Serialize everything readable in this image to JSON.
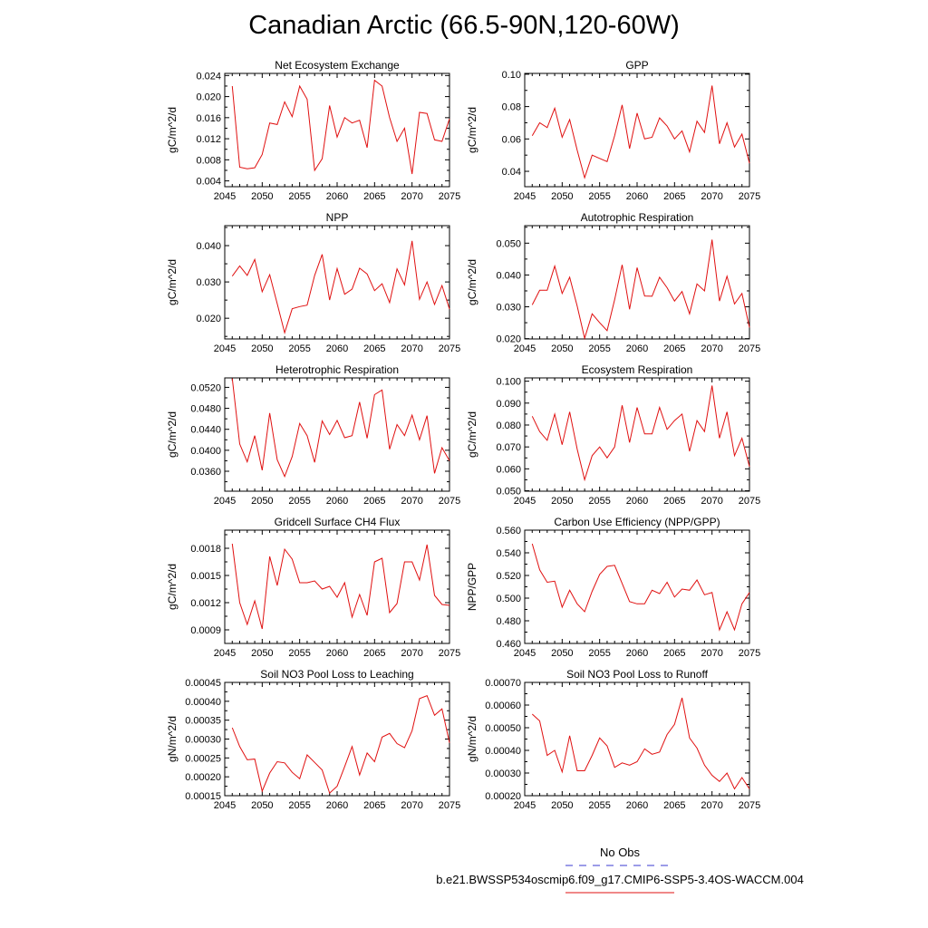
{
  "title": "Canadian Arctic (66.5-90N,120-60W)",
  "legend": {
    "obs_label": "No Obs",
    "obs_color": "#3a3ad0",
    "case_label": "b.e21.BWSSP534oscmip6.f09_g17.CMIP6-SSP5-3.4OS-WACCM.004",
    "case_color": "#e01010"
  },
  "chart_data": [
    {
      "type": "line",
      "title": "Net Ecosystem Exchange",
      "ylabel": "gC/m^2/d",
      "xlim": [
        2045,
        2075
      ],
      "xticks": [
        "2045",
        "2050",
        "2055",
        "2060",
        "2065",
        "2070",
        "2075"
      ],
      "ylim": [
        0.0029,
        0.0244
      ],
      "yticks": [
        "0.004",
        "0.008",
        "0.012",
        "0.016",
        "0.020",
        "0.024"
      ],
      "series": [
        {
          "name": "b.e21.BWSSP534oscmip6.f09_g17.CMIP6-SSP5-3.4OS-WACCM.004",
          "color": "#e01010",
          "x": [
            2046,
            2047,
            2048,
            2049,
            2050,
            2051,
            2052,
            2053,
            2054,
            2055,
            2056,
            2057,
            2058,
            2059,
            2060,
            2061,
            2062,
            2063,
            2064,
            2065,
            2066,
            2067,
            2068,
            2069,
            2070,
            2071,
            2072,
            2073,
            2074,
            2075
          ],
          "y": [
            0.022,
            0.0066,
            0.0063,
            0.0065,
            0.009,
            0.015,
            0.0147,
            0.019,
            0.0162,
            0.022,
            0.0195,
            0.006,
            0.0082,
            0.0183,
            0.0123,
            0.016,
            0.015,
            0.0155,
            0.0103,
            0.0231,
            0.022,
            0.016,
            0.0115,
            0.014,
            0.0053,
            0.017,
            0.0168,
            0.0118,
            0.0115,
            0.0158
          ]
        }
      ]
    },
    {
      "type": "line",
      "title": "GPP",
      "ylabel": "gC/m^2/d",
      "xlim": [
        2045,
        2075
      ],
      "xticks": [
        "2045",
        "2050",
        "2055",
        "2060",
        "2065",
        "2070",
        "2075"
      ],
      "ylim": [
        0.0305,
        0.1005
      ],
      "yticks": [
        "0.04",
        "0.06",
        "0.08",
        "0.10"
      ],
      "series": [
        {
          "name": "b.e21.BWSSP534oscmip6.f09_g17.CMIP6-SSP5-3.4OS-WACCM.004",
          "color": "#e01010",
          "x": [
            2046,
            2047,
            2048,
            2049,
            2050,
            2051,
            2052,
            2053,
            2054,
            2055,
            2056,
            2057,
            2058,
            2059,
            2060,
            2061,
            2062,
            2063,
            2064,
            2065,
            2066,
            2067,
            2068,
            2069,
            2070,
            2071,
            2072,
            2073,
            2074,
            2075
          ],
          "y": [
            0.062,
            0.07,
            0.067,
            0.079,
            0.061,
            0.072,
            0.053,
            0.036,
            0.05,
            0.048,
            0.046,
            0.062,
            0.081,
            0.054,
            0.076,
            0.06,
            0.061,
            0.073,
            0.068,
            0.06,
            0.065,
            0.052,
            0.071,
            0.064,
            0.093,
            0.057,
            0.07,
            0.055,
            0.063,
            0.045
          ]
        }
      ]
    },
    {
      "type": "line",
      "title": "NPP",
      "ylabel": "gC/m^2/d",
      "xlim": [
        2045,
        2075
      ],
      "xticks": [
        "2045",
        "2050",
        "2055",
        "2060",
        "2065",
        "2070",
        "2075"
      ],
      "ylim": [
        0.0143,
        0.0455
      ],
      "yticks": [
        "0.020",
        "0.030",
        "0.040"
      ],
      "series": [
        {
          "name": "b.e21.BWSSP534oscmip6.f09_g17.CMIP6-SSP5-3.4OS-WACCM.004",
          "color": "#e01010",
          "x": [
            2046,
            2047,
            2048,
            2049,
            2050,
            2051,
            2052,
            2053,
            2054,
            2055,
            2056,
            2057,
            2058,
            2059,
            2060,
            2061,
            2062,
            2063,
            2064,
            2065,
            2066,
            2067,
            2068,
            2069,
            2070,
            2071,
            2072,
            2073,
            2074,
            2075
          ],
          "y": [
            0.0316,
            0.0344,
            0.0318,
            0.0362,
            0.0273,
            0.032,
            0.024,
            0.016,
            0.0226,
            0.0232,
            0.0236,
            0.0318,
            0.0376,
            0.025,
            0.0337,
            0.0266,
            0.028,
            0.0338,
            0.0322,
            0.0276,
            0.0295,
            0.0243,
            0.0336,
            0.0292,
            0.0413,
            0.0252,
            0.03,
            0.0238,
            0.029,
            0.0225
          ]
        }
      ]
    },
    {
      "type": "line",
      "title": "Autotrophic Respiration",
      "ylabel": "gC/m^2/d",
      "xlim": [
        2045,
        2075
      ],
      "xticks": [
        "2045",
        "2050",
        "2055",
        "2060",
        "2065",
        "2070",
        "2075"
      ],
      "ylim": [
        0.0199,
        0.0555
      ],
      "yticks": [
        "0.020",
        "0.030",
        "0.040",
        "0.050"
      ],
      "series": [
        {
          "name": "b.e21.BWSSP534oscmip6.f09_g17.CMIP6-SSP5-3.4OS-WACCM.004",
          "color": "#e01010",
          "x": [
            2046,
            2047,
            2048,
            2049,
            2050,
            2051,
            2052,
            2053,
            2054,
            2055,
            2056,
            2057,
            2058,
            2059,
            2060,
            2061,
            2062,
            2063,
            2064,
            2065,
            2066,
            2067,
            2068,
            2069,
            2070,
            2071,
            2072,
            2073,
            2074,
            2075
          ],
          "y": [
            0.0306,
            0.0352,
            0.0352,
            0.0428,
            0.0342,
            0.0393,
            0.0302,
            0.0201,
            0.0278,
            0.025,
            0.0225,
            0.0322,
            0.0432,
            0.0292,
            0.0423,
            0.0334,
            0.0333,
            0.0393,
            0.036,
            0.0318,
            0.0348,
            0.0278,
            0.0372,
            0.035,
            0.0511,
            0.0318,
            0.0396,
            0.0309,
            0.0342,
            0.0235
          ]
        }
      ]
    },
    {
      "type": "line",
      "title": "Heterotrophic Respiration",
      "ylabel": "gC/m^2/d",
      "xlim": [
        2045,
        2075
      ],
      "xticks": [
        "2045",
        "2050",
        "2055",
        "2060",
        "2065",
        "2070",
        "2075"
      ],
      "ylim": [
        0.0322,
        0.0538
      ],
      "yticks": [
        "0.0360",
        "0.0400",
        "0.0440",
        "0.0480",
        "0.0520"
      ],
      "series": [
        {
          "name": "b.e21.BWSSP534oscmip6.f09_g17.CMIP6-SSP5-3.4OS-WACCM.004",
          "color": "#e01010",
          "x": [
            2046,
            2047,
            2048,
            2049,
            2050,
            2051,
            2052,
            2053,
            2054,
            2055,
            2056,
            2057,
            2058,
            2059,
            2060,
            2061,
            2062,
            2063,
            2064,
            2065,
            2066,
            2067,
            2068,
            2069,
            2070,
            2071,
            2072,
            2073,
            2074,
            2075
          ],
          "y": [
            0.0537,
            0.0412,
            0.0378,
            0.0428,
            0.0362,
            0.0471,
            0.0382,
            0.035,
            0.0388,
            0.0451,
            0.0428,
            0.0377,
            0.0456,
            0.043,
            0.0457,
            0.0424,
            0.0428,
            0.0492,
            0.0423,
            0.0506,
            0.0515,
            0.0402,
            0.0449,
            0.0428,
            0.0467,
            0.042,
            0.0466,
            0.0356,
            0.0405,
            0.038
          ]
        }
      ]
    },
    {
      "type": "line",
      "title": "Ecosystem Respiration",
      "ylabel": "gC/m^2/d",
      "xlim": [
        2045,
        2075
      ],
      "xticks": [
        "2045",
        "2050",
        "2055",
        "2060",
        "2065",
        "2070",
        "2075"
      ],
      "ylim": [
        0.0498,
        0.1015
      ],
      "yticks": [
        "0.050",
        "0.060",
        "0.070",
        "0.080",
        "0.090",
        "0.100"
      ],
      "series": [
        {
          "name": "b.e21.BWSSP534oscmip6.f09_g17.CMIP6-SSP5-3.4OS-WACCM.004",
          "color": "#e01010",
          "x": [
            2046,
            2047,
            2048,
            2049,
            2050,
            2051,
            2052,
            2053,
            2054,
            2055,
            2056,
            2057,
            2058,
            2059,
            2060,
            2061,
            2062,
            2063,
            2064,
            2065,
            2066,
            2067,
            2068,
            2069,
            2070,
            2071,
            2072,
            2073,
            2074,
            2075
          ],
          "y": [
            0.084,
            0.077,
            0.073,
            0.085,
            0.071,
            0.086,
            0.069,
            0.055,
            0.066,
            0.07,
            0.065,
            0.07,
            0.089,
            0.072,
            0.088,
            0.076,
            0.076,
            0.088,
            0.078,
            0.082,
            0.085,
            0.068,
            0.082,
            0.077,
            0.098,
            0.074,
            0.086,
            0.066,
            0.074,
            0.061
          ]
        }
      ]
    },
    {
      "type": "line",
      "title": "Gridcell Surface CH4 Flux",
      "ylabel": "gC/m^2/d",
      "xlim": [
        2045,
        2075
      ],
      "xticks": [
        "2045",
        "2050",
        "2055",
        "2060",
        "2065",
        "2070",
        "2075"
      ],
      "ylim": [
        0.00075,
        0.002
      ],
      "yticks": [
        "0.0009",
        "0.0012",
        "0.0015",
        "0.0018"
      ],
      "series": [
        {
          "name": "b.e21.BWSSP534oscmip6.f09_g17.CMIP6-SSP5-3.4OS-WACCM.004",
          "color": "#e01010",
          "x": [
            2046,
            2047,
            2048,
            2049,
            2050,
            2051,
            2052,
            2053,
            2054,
            2055,
            2056,
            2057,
            2058,
            2059,
            2060,
            2061,
            2062,
            2063,
            2064,
            2065,
            2066,
            2067,
            2068,
            2069,
            2070,
            2071,
            2072,
            2073,
            2074,
            2075
          ],
          "y": [
            0.00185,
            0.0012,
            0.00096,
            0.00122,
            0.00091,
            0.00171,
            0.00139,
            0.00179,
            0.00168,
            0.00142,
            0.00142,
            0.00144,
            0.00135,
            0.00138,
            0.00126,
            0.00142,
            0.00104,
            0.00129,
            0.00106,
            0.00165,
            0.00169,
            0.00109,
            0.00119,
            0.00165,
            0.00165,
            0.00145,
            0.00184,
            0.00128,
            0.00118,
            0.00117
          ]
        }
      ]
    },
    {
      "type": "line",
      "title": "Carbon Use Efficiency (NPP/GPP)",
      "ylabel": "NPP/GPP",
      "xlim": [
        2045,
        2075
      ],
      "xticks": [
        "2045",
        "2050",
        "2055",
        "2060",
        "2065",
        "2070",
        "2075"
      ],
      "ylim": [
        0.46,
        0.56
      ],
      "yticks": [
        "0.460",
        "0.480",
        "0.500",
        "0.520",
        "0.540",
        "0.560"
      ],
      "series": [
        {
          "name": "b.e21.BWSSP534oscmip6.f09_g17.CMIP6-SSP5-3.4OS-WACCM.004",
          "color": "#e01010",
          "x": [
            2046,
            2047,
            2048,
            2049,
            2050,
            2051,
            2052,
            2053,
            2054,
            2055,
            2056,
            2057,
            2058,
            2059,
            2060,
            2061,
            2062,
            2063,
            2064,
            2065,
            2066,
            2067,
            2068,
            2069,
            2070,
            2071,
            2072,
            2073,
            2074,
            2075
          ],
          "y": [
            0.548,
            0.525,
            0.514,
            0.515,
            0.492,
            0.507,
            0.495,
            0.488,
            0.506,
            0.521,
            0.528,
            0.529,
            0.513,
            0.497,
            0.495,
            0.495,
            0.507,
            0.504,
            0.514,
            0.501,
            0.508,
            0.507,
            0.516,
            0.503,
            0.505,
            0.472,
            0.488,
            0.472,
            0.495,
            0.505
          ]
        }
      ]
    },
    {
      "type": "line",
      "title": "Soil NO3 Pool Loss to Leaching",
      "ylabel": "gN/m^2/d",
      "xlim": [
        2045,
        2075
      ],
      "xticks": [
        "2045",
        "2050",
        "2055",
        "2060",
        "2065",
        "2070",
        "2075"
      ],
      "ylim": [
        0.00015,
        0.00045
      ],
      "yticks": [
        "0.00015",
        "0.00020",
        "0.00025",
        "0.00030",
        "0.00035",
        "0.00040",
        "0.00045"
      ],
      "series": [
        {
          "name": "b.e21.BWSSP534oscmip6.f09_g17.CMIP6-SSP5-3.4OS-WACCM.004",
          "color": "#e01010",
          "x": [
            2046,
            2047,
            2048,
            2049,
            2050,
            2051,
            2052,
            2053,
            2054,
            2055,
            2056,
            2057,
            2058,
            2059,
            2060,
            2061,
            2062,
            2063,
            2064,
            2065,
            2066,
            2067,
            2068,
            2069,
            2070,
            2071,
            2072,
            2073,
            2074,
            2075
          ],
          "y": [
            0.00033,
            0.00028,
            0.000245,
            0.000247,
            0.000162,
            0.00021,
            0.00024,
            0.000237,
            0.000212,
            0.000195,
            0.000258,
            0.000238,
            0.000218,
            0.000157,
            0.000175,
            0.000227,
            0.00028,
            0.000205,
            0.000263,
            0.00024,
            0.000305,
            0.000315,
            0.000288,
            0.000277,
            0.000322,
            0.000407,
            0.000415,
            0.000363,
            0.00038,
            0.00029
          ]
        }
      ]
    },
    {
      "type": "line",
      "title": "Soil NO3 Pool Loss to Runoff",
      "ylabel": "gN/m^2/d",
      "xlim": [
        2045,
        2075
      ],
      "xticks": [
        "2045",
        "2050",
        "2055",
        "2060",
        "2065",
        "2070",
        "2075"
      ],
      "ylim": [
        0.0002,
        0.0007
      ],
      "yticks": [
        "0.00020",
        "0.00030",
        "0.00040",
        "0.00050",
        "0.00060",
        "0.00070"
      ],
      "series": [
        {
          "name": "b.e21.BWSSP534oscmip6.f09_g17.CMIP6-SSP5-3.4OS-WACCM.004",
          "color": "#e01010",
          "x": [
            2046,
            2047,
            2048,
            2049,
            2050,
            2051,
            2052,
            2053,
            2054,
            2055,
            2056,
            2057,
            2058,
            2059,
            2060,
            2061,
            2062,
            2063,
            2064,
            2065,
            2066,
            2067,
            2068,
            2069,
            2070,
            2071,
            2072,
            2073,
            2074,
            2075
          ],
          "y": [
            0.00056,
            0.00053,
            0.000378,
            0.0004,
            0.000305,
            0.000465,
            0.00031,
            0.00031,
            0.000378,
            0.000455,
            0.00042,
            0.000325,
            0.000345,
            0.000335,
            0.00035,
            0.000407,
            0.000383,
            0.000393,
            0.00047,
            0.000515,
            0.000632,
            0.000455,
            0.00041,
            0.000335,
            0.00029,
            0.000263,
            0.0003,
            0.00023,
            0.00028,
            0.00023
          ]
        }
      ]
    }
  ]
}
